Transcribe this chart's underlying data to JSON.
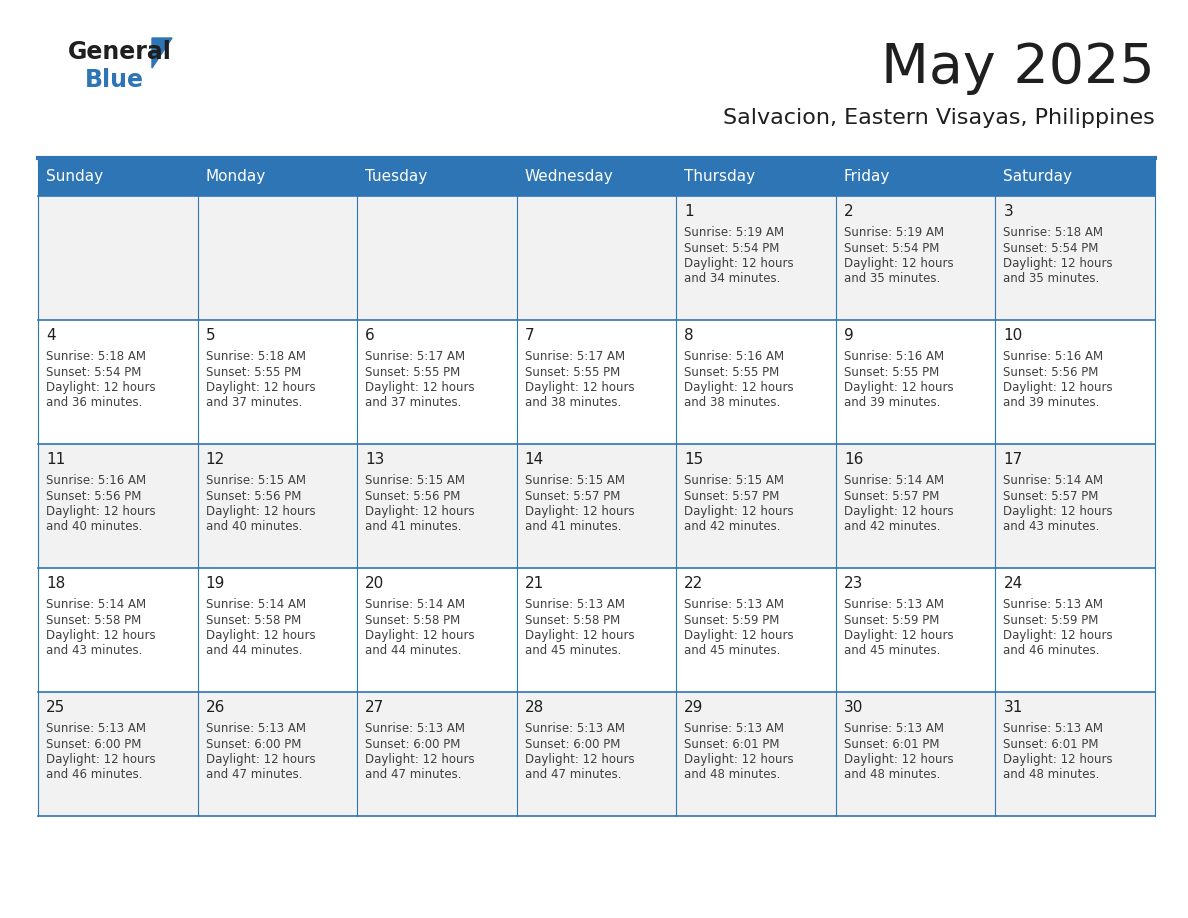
{
  "title": "May 2025",
  "subtitle": "Salvacion, Eastern Visayas, Philippines",
  "days_of_week": [
    "Sunday",
    "Monday",
    "Tuesday",
    "Wednesday",
    "Thursday",
    "Friday",
    "Saturday"
  ],
  "header_bg": "#2E75B6",
  "header_text": "#FFFFFF",
  "cell_bg_odd": "#F2F2F2",
  "cell_bg_even": "#FFFFFF",
  "cell_border": "#2E75B6",
  "day_number_color": "#1F1F1F",
  "text_color": "#404040",
  "title_color": "#1F1F1F",
  "subtitle_color": "#1F1F1F",
  "logo_general_color": "#1F1F1F",
  "logo_blue_color": "#2E75B6",
  "calendar_data": [
    [
      {
        "day": null,
        "sunrise": null,
        "sunset": null,
        "daylight_suffix": null
      },
      {
        "day": null,
        "sunrise": null,
        "sunset": null,
        "daylight_suffix": null
      },
      {
        "day": null,
        "sunrise": null,
        "sunset": null,
        "daylight_suffix": null
      },
      {
        "day": null,
        "sunrise": null,
        "sunset": null,
        "daylight_suffix": null
      },
      {
        "day": 1,
        "sunrise": "5:19 AM",
        "sunset": "5:54 PM",
        "daylight_suffix": "34 minutes."
      },
      {
        "day": 2,
        "sunrise": "5:19 AM",
        "sunset": "5:54 PM",
        "daylight_suffix": "35 minutes."
      },
      {
        "day": 3,
        "sunrise": "5:18 AM",
        "sunset": "5:54 PM",
        "daylight_suffix": "35 minutes."
      }
    ],
    [
      {
        "day": 4,
        "sunrise": "5:18 AM",
        "sunset": "5:54 PM",
        "daylight_suffix": "36 minutes."
      },
      {
        "day": 5,
        "sunrise": "5:18 AM",
        "sunset": "5:55 PM",
        "daylight_suffix": "37 minutes."
      },
      {
        "day": 6,
        "sunrise": "5:17 AM",
        "sunset": "5:55 PM",
        "daylight_suffix": "37 minutes."
      },
      {
        "day": 7,
        "sunrise": "5:17 AM",
        "sunset": "5:55 PM",
        "daylight_suffix": "38 minutes."
      },
      {
        "day": 8,
        "sunrise": "5:16 AM",
        "sunset": "5:55 PM",
        "daylight_suffix": "38 minutes."
      },
      {
        "day": 9,
        "sunrise": "5:16 AM",
        "sunset": "5:55 PM",
        "daylight_suffix": "39 minutes."
      },
      {
        "day": 10,
        "sunrise": "5:16 AM",
        "sunset": "5:56 PM",
        "daylight_suffix": "39 minutes."
      }
    ],
    [
      {
        "day": 11,
        "sunrise": "5:16 AM",
        "sunset": "5:56 PM",
        "daylight_suffix": "40 minutes."
      },
      {
        "day": 12,
        "sunrise": "5:15 AM",
        "sunset": "5:56 PM",
        "daylight_suffix": "40 minutes."
      },
      {
        "day": 13,
        "sunrise": "5:15 AM",
        "sunset": "5:56 PM",
        "daylight_suffix": "41 minutes."
      },
      {
        "day": 14,
        "sunrise": "5:15 AM",
        "sunset": "5:57 PM",
        "daylight_suffix": "41 minutes."
      },
      {
        "day": 15,
        "sunrise": "5:15 AM",
        "sunset": "5:57 PM",
        "daylight_suffix": "42 minutes."
      },
      {
        "day": 16,
        "sunrise": "5:14 AM",
        "sunset": "5:57 PM",
        "daylight_suffix": "42 minutes."
      },
      {
        "day": 17,
        "sunrise": "5:14 AM",
        "sunset": "5:57 PM",
        "daylight_suffix": "43 minutes."
      }
    ],
    [
      {
        "day": 18,
        "sunrise": "5:14 AM",
        "sunset": "5:58 PM",
        "daylight_suffix": "43 minutes."
      },
      {
        "day": 19,
        "sunrise": "5:14 AM",
        "sunset": "5:58 PM",
        "daylight_suffix": "44 minutes."
      },
      {
        "day": 20,
        "sunrise": "5:14 AM",
        "sunset": "5:58 PM",
        "daylight_suffix": "44 minutes."
      },
      {
        "day": 21,
        "sunrise": "5:13 AM",
        "sunset": "5:58 PM",
        "daylight_suffix": "45 minutes."
      },
      {
        "day": 22,
        "sunrise": "5:13 AM",
        "sunset": "5:59 PM",
        "daylight_suffix": "45 minutes."
      },
      {
        "day": 23,
        "sunrise": "5:13 AM",
        "sunset": "5:59 PM",
        "daylight_suffix": "45 minutes."
      },
      {
        "day": 24,
        "sunrise": "5:13 AM",
        "sunset": "5:59 PM",
        "daylight_suffix": "46 minutes."
      }
    ],
    [
      {
        "day": 25,
        "sunrise": "5:13 AM",
        "sunset": "6:00 PM",
        "daylight_suffix": "46 minutes."
      },
      {
        "day": 26,
        "sunrise": "5:13 AM",
        "sunset": "6:00 PM",
        "daylight_suffix": "47 minutes."
      },
      {
        "day": 27,
        "sunrise": "5:13 AM",
        "sunset": "6:00 PM",
        "daylight_suffix": "47 minutes."
      },
      {
        "day": 28,
        "sunrise": "5:13 AM",
        "sunset": "6:00 PM",
        "daylight_suffix": "47 minutes."
      },
      {
        "day": 29,
        "sunrise": "5:13 AM",
        "sunset": "6:01 PM",
        "daylight_suffix": "48 minutes."
      },
      {
        "day": 30,
        "sunrise": "5:13 AM",
        "sunset": "6:01 PM",
        "daylight_suffix": "48 minutes."
      },
      {
        "day": 31,
        "sunrise": "5:13 AM",
        "sunset": "6:01 PM",
        "daylight_suffix": "48 minutes."
      }
    ]
  ]
}
